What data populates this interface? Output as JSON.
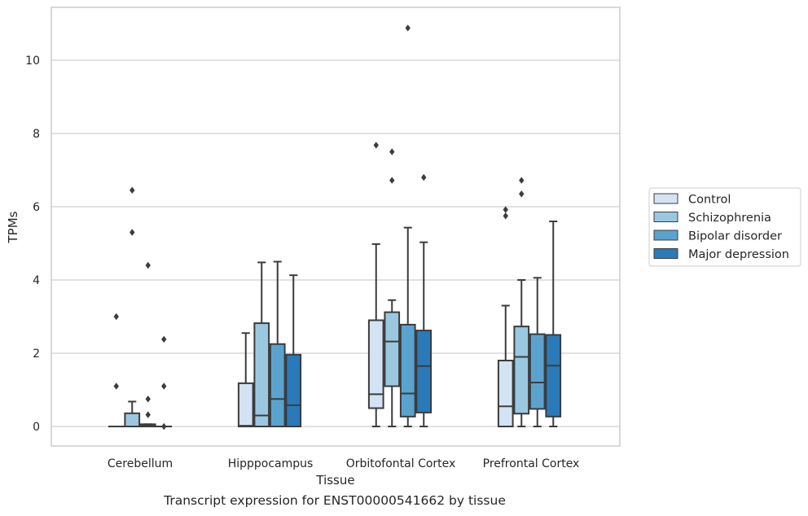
{
  "caption": "Transcript expression for ENST00000541662 by tissue",
  "chart_data": {
    "type": "boxplot",
    "xlabel": "Tissue",
    "ylabel": "TPMs",
    "ylim": [
      -0.5,
      11.4
    ],
    "yticks": [
      0,
      2,
      4,
      6,
      8,
      10
    ],
    "grid": "horizontal",
    "legend_position": "center-right",
    "categories": [
      "Cerebellum",
      "Hipppocampus",
      "Orbitofontal Cortex",
      "Prefrontal Cortex"
    ],
    "series": [
      {
        "name": "Control",
        "color": "#d3e3f3",
        "boxes": [
          {
            "whisker_low": 0,
            "q1": 0,
            "median": 0,
            "q3": 0,
            "whisker_high": 0,
            "outliers": [
              3.0,
              1.1
            ]
          },
          {
            "whisker_low": 0,
            "q1": 0,
            "median": 0.02,
            "q3": 1.18,
            "whisker_high": 2.55,
            "outliers": []
          },
          {
            "whisker_low": 0,
            "q1": 0.5,
            "median": 0.88,
            "q3": 2.9,
            "whisker_high": 4.98,
            "outliers": [
              7.68
            ]
          },
          {
            "whisker_low": 0,
            "q1": 0,
            "median": 0.55,
            "q3": 1.8,
            "whisker_high": 3.3,
            "outliers": [
              5.92,
              5.75
            ]
          }
        ]
      },
      {
        "name": "Schizophrenia",
        "color": "#9ac8e0",
        "boxes": [
          {
            "whisker_low": 0,
            "q1": 0,
            "median": 0,
            "q3": 0.36,
            "whisker_high": 0.68,
            "outliers": [
              6.45,
              5.3
            ]
          },
          {
            "whisker_low": 0,
            "q1": 0,
            "median": 0.3,
            "q3": 2.82,
            "whisker_high": 4.48,
            "outliers": []
          },
          {
            "whisker_low": 0,
            "q1": 1.1,
            "median": 2.32,
            "q3": 3.12,
            "whisker_high": 3.45,
            "outliers": [
              7.5,
              6.72
            ]
          },
          {
            "whisker_low": 0,
            "q1": 0.35,
            "median": 1.9,
            "q3": 2.73,
            "whisker_high": 4.0,
            "outliers": [
              6.72,
              6.35
            ]
          }
        ]
      },
      {
        "name": "Bipolar disorder",
        "color": "#5ba3cf",
        "boxes": [
          {
            "whisker_low": 0,
            "q1": 0,
            "median": 0.03,
            "q3": 0.06,
            "whisker_high": 0.06,
            "outliers": [
              4.4,
              0.75,
              0.32
            ]
          },
          {
            "whisker_low": 0,
            "q1": 0,
            "median": 0.75,
            "q3": 2.25,
            "whisker_high": 4.5,
            "outliers": []
          },
          {
            "whisker_low": 0,
            "q1": 0.27,
            "median": 0.9,
            "q3": 2.78,
            "whisker_high": 5.43,
            "outliers": [
              10.88
            ]
          },
          {
            "whisker_low": 0,
            "q1": 0.48,
            "median": 1.2,
            "q3": 2.52,
            "whisker_high": 4.06,
            "outliers": []
          }
        ]
      },
      {
        "name": "Major depression",
        "color": "#2a7ab9",
        "boxes": [
          {
            "whisker_low": 0,
            "q1": 0,
            "median": 0,
            "q3": 0,
            "whisker_high": 0,
            "outliers": [
              2.38,
              1.1,
              0.0
            ]
          },
          {
            "whisker_low": 0,
            "q1": 0,
            "median": 0.58,
            "q3": 1.96,
            "whisker_high": 4.13,
            "outliers": []
          },
          {
            "whisker_low": 0,
            "q1": 0.38,
            "median": 1.65,
            "q3": 2.62,
            "whisker_high": 5.03,
            "outliers": [
              6.8
            ]
          },
          {
            "whisker_low": 0,
            "q1": 0.27,
            "median": 1.66,
            "q3": 2.5,
            "whisker_high": 5.6,
            "outliers": []
          }
        ]
      }
    ]
  }
}
